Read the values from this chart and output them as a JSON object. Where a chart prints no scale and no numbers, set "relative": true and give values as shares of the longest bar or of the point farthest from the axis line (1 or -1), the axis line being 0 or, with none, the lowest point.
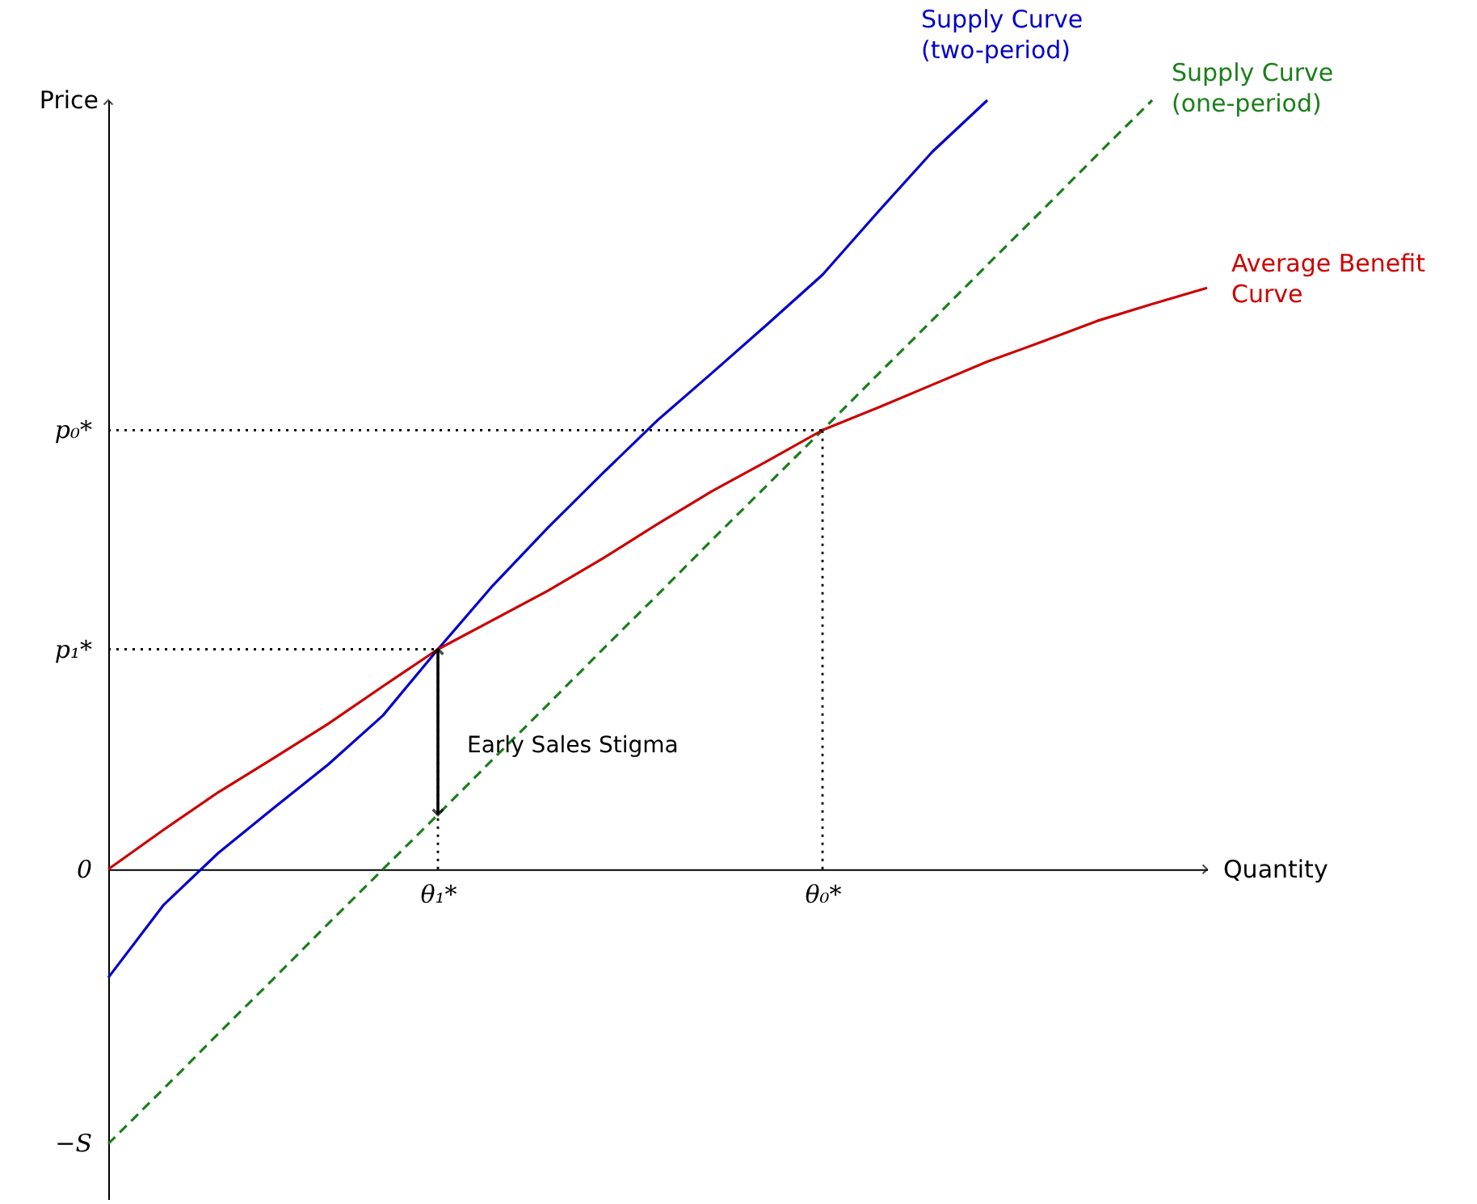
{
  "chart_data": {
    "type": "line",
    "relative": true,
    "xlabel": "Quantity",
    "ylabel": "Price",
    "categories": [
      null,
      null,
      null,
      null,
      null,
      null,
      "θ₁*",
      null,
      null,
      null,
      null,
      null,
      null,
      "θ₀*",
      null,
      null,
      null,
      null,
      null,
      null,
      null
    ],
    "series": [
      {
        "name": "Supply Curve\n(two-period)",
        "color": "#0000cc",
        "line_style": "solid",
        "values": [
          -0.141,
          -0.047,
          0.021,
          0.079,
          0.136,
          0.2,
          0.286,
          0.369,
          0.444,
          0.515,
          0.584,
          0.646,
          0.709,
          0.773,
          0.854,
          0.933,
          1.0,
          null,
          null,
          null,
          null
        ]
      },
      {
        "name": "Supply Curve\n(one-period)",
        "color": "#1a7f1a",
        "line_style": "dashed",
        "values": [
          -0.357,
          -0.286,
          -0.214,
          -0.143,
          -0.071,
          0.0,
          0.071,
          0.143,
          0.214,
          0.286,
          0.357,
          0.429,
          0.5,
          0.571,
          0.643,
          0.714,
          0.786,
          0.857,
          0.929,
          1.0,
          null
        ]
      },
      {
        "name": "Average Benefit\nCurve",
        "color": "#cc0000",
        "line_style": "solid",
        "values": [
          0,
          0.051,
          0.1,
          0.144,
          0.189,
          0.238,
          0.286,
          0.324,
          0.362,
          0.404,
          0.449,
          0.492,
          0.531,
          0.571,
          0.6,
          0.63,
          0.66,
          0.686,
          0.713,
          0.735,
          0.756
        ]
      }
    ],
    "ref_lines": [
      {
        "axis": "y",
        "value": 0.571,
        "label": "p₀*",
        "color": "#000000",
        "line_style": "dotted"
      },
      {
        "axis": "x",
        "value": "θ₀*",
        "color": "#000000",
        "line_style": "dotted"
      },
      {
        "axis": "y",
        "value": 0.286,
        "label": "p₁*",
        "color": "#000000",
        "line_style": "dotted"
      },
      {
        "axis": "x",
        "value": "θ₁*",
        "color": "#000000",
        "line_style": "dotted"
      }
    ],
    "annotations": [
      "0",
      "−S",
      {
        "text": "Early Sales Stigma",
        "x": "θ₁*",
        "y": 0.16
      }
    ]
  }
}
